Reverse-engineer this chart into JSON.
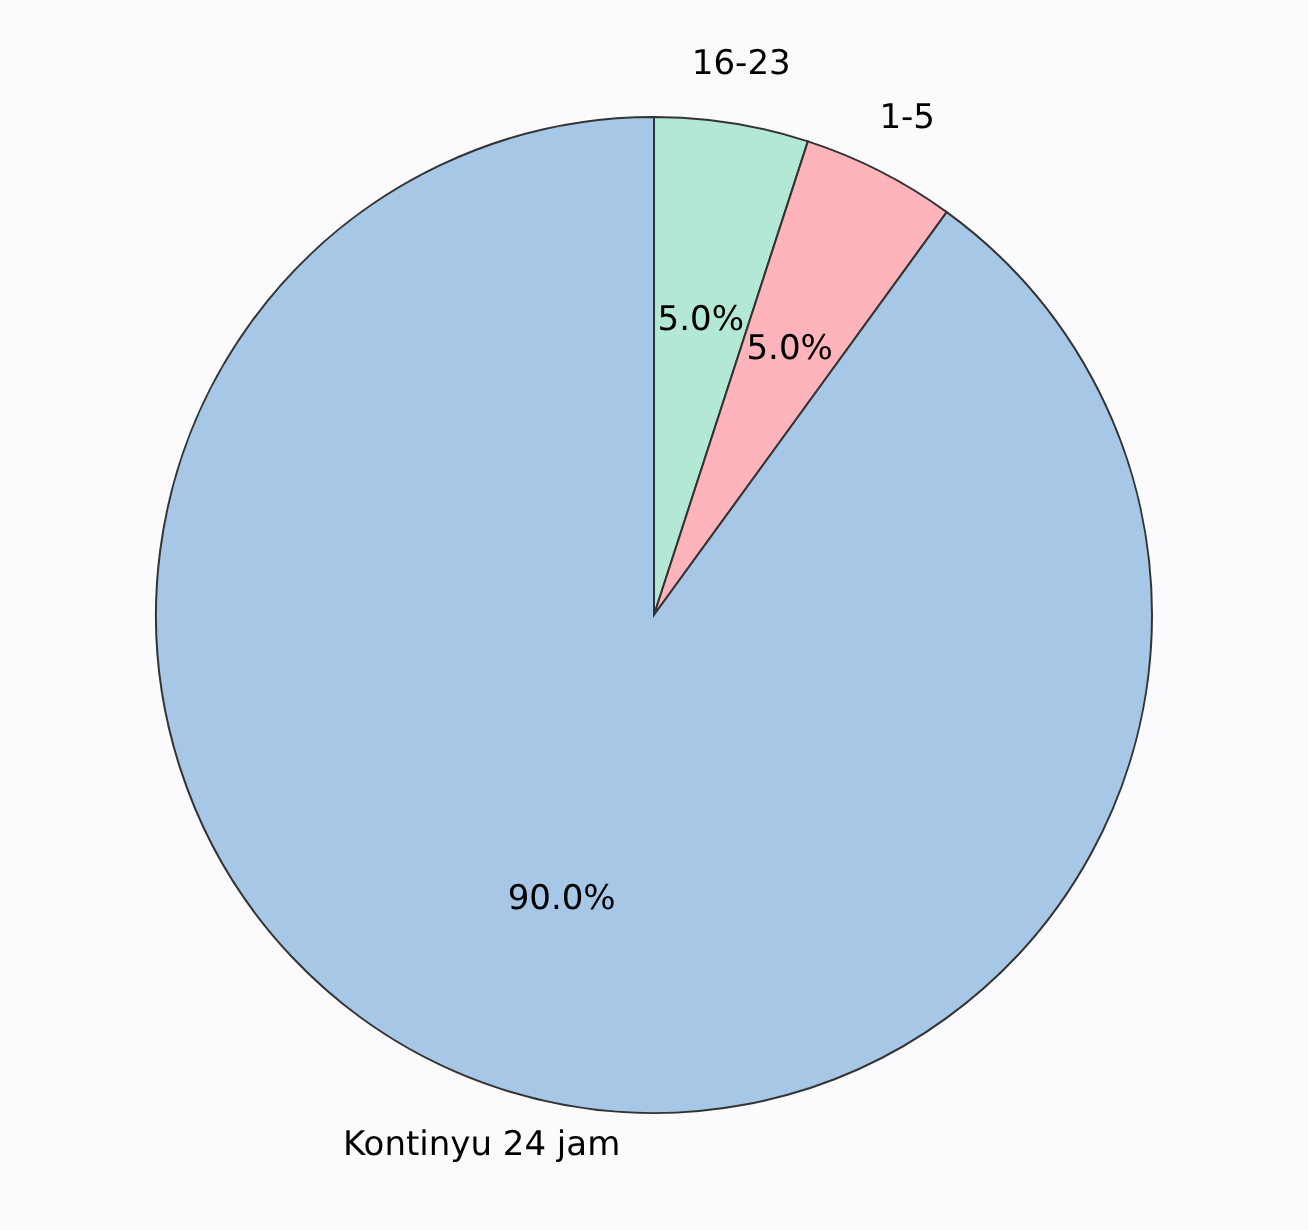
{
  "chart_data": {
    "type": "pie",
    "categories": [
      "16-23",
      "1-5",
      "Kontinyu 24 jam"
    ],
    "values": [
      5.0,
      5.0,
      90.0
    ],
    "colors": [
      "#b3e8d5",
      "#ffb3ba",
      "#a7c7e7"
    ],
    "value_labels": [
      "5.0%",
      "5.0%",
      "90.0%"
    ]
  }
}
